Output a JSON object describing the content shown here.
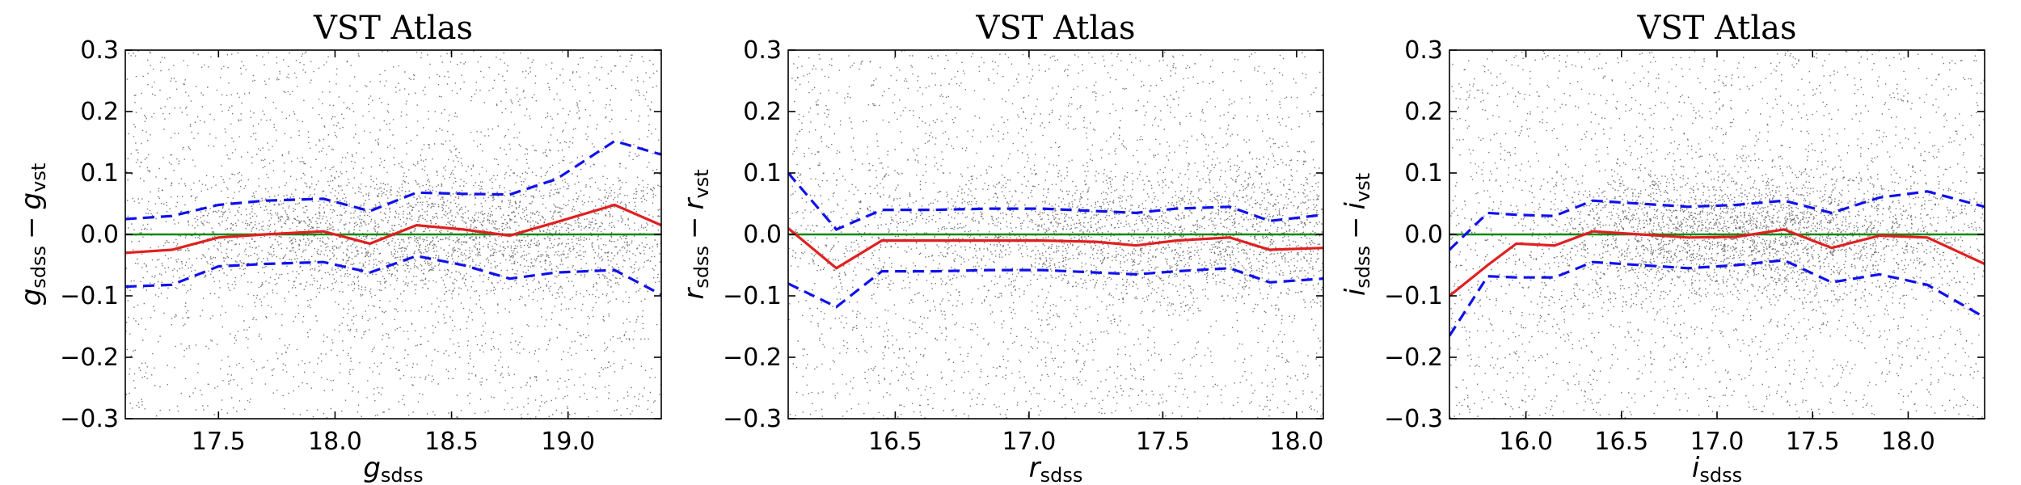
{
  "colors": {
    "zero_line": "#118811",
    "median": "#e02020",
    "spread": "#1010ee",
    "points": "#000000"
  },
  "chart_data": [
    {
      "type": "scatter",
      "title": "VST Atlas",
      "xlabel": {
        "var": "g",
        "sub": "sdss"
      },
      "ylabel": {
        "var1": "g",
        "sub1": "sdss",
        "op": "−",
        "var2": "g",
        "sub2": "vst"
      },
      "xlim": [
        17.1,
        19.4
      ],
      "ylim": [
        -0.3,
        0.3
      ],
      "xticks": [
        17.5,
        18.0,
        18.5,
        19.0
      ],
      "xtick_labels": [
        "17.5",
        "18.0",
        "18.5",
        "19.0"
      ],
      "yticks": [
        -0.3,
        -0.2,
        -0.1,
        0.0,
        0.1,
        0.2,
        0.3
      ],
      "ytick_labels": [
        "−0.3",
        "−0.2",
        "−0.1",
        "0.0",
        "0.1",
        "0.2",
        "0.3"
      ],
      "scatter_center": 18.45,
      "scatter_width": 0.75,
      "scatter_seed": 11,
      "series": [
        {
          "name": "zero",
          "style": "solid",
          "color": "zero_line",
          "x": [
            17.1,
            19.4
          ],
          "y": [
            0,
            0
          ]
        },
        {
          "name": "median",
          "style": "solid",
          "color": "median",
          "x": [
            17.1,
            17.3,
            17.5,
            17.7,
            17.95,
            18.15,
            18.35,
            18.55,
            18.75,
            18.95,
            19.2,
            19.4
          ],
          "y": [
            -0.03,
            -0.025,
            -0.005,
            0.0,
            0.005,
            -0.015,
            0.015,
            0.008,
            -0.002,
            0.02,
            0.048,
            0.015
          ]
        },
        {
          "name": "upper",
          "style": "dashed",
          "color": "spread",
          "x": [
            17.1,
            17.3,
            17.5,
            17.7,
            17.95,
            18.15,
            18.35,
            18.55,
            18.75,
            18.95,
            19.2,
            19.4
          ],
          "y": [
            0.025,
            0.03,
            0.048,
            0.055,
            0.058,
            0.038,
            0.068,
            0.066,
            0.065,
            0.09,
            0.152,
            0.13
          ]
        },
        {
          "name": "lower",
          "style": "dashed",
          "color": "spread",
          "x": [
            17.1,
            17.3,
            17.5,
            17.7,
            17.95,
            18.15,
            18.35,
            18.55,
            18.75,
            18.95,
            19.2,
            19.4
          ],
          "y": [
            -0.085,
            -0.082,
            -0.052,
            -0.048,
            -0.045,
            -0.062,
            -0.035,
            -0.05,
            -0.072,
            -0.062,
            -0.058,
            -0.098
          ]
        }
      ]
    },
    {
      "type": "scatter",
      "title": "VST Atlas",
      "xlabel": {
        "var": "r",
        "sub": "sdss"
      },
      "ylabel": {
        "var1": "r",
        "sub1": "sdss",
        "op": "−",
        "var2": "r",
        "sub2": "vst"
      },
      "xlim": [
        16.1,
        18.1
      ],
      "ylim": [
        -0.3,
        0.3
      ],
      "xticks": [
        16.5,
        17.0,
        17.5,
        18.0
      ],
      "xtick_labels": [
        "16.5",
        "17.0",
        "17.5",
        "18.0"
      ],
      "yticks": [
        -0.3,
        -0.2,
        -0.1,
        0.0,
        0.1,
        0.2,
        0.3
      ],
      "ytick_labels": [
        "−0.3",
        "−0.2",
        "−0.1",
        "0.0",
        "0.1",
        "0.2",
        "0.3"
      ],
      "scatter_center": 17.6,
      "scatter_width": 0.7,
      "scatter_seed": 23,
      "series": [
        {
          "name": "zero",
          "style": "solid",
          "color": "zero_line",
          "x": [
            16.1,
            18.1
          ],
          "y": [
            0,
            0
          ]
        },
        {
          "name": "median",
          "style": "solid",
          "color": "median",
          "x": [
            16.1,
            16.28,
            16.45,
            16.65,
            16.85,
            17.05,
            17.25,
            17.4,
            17.55,
            17.75,
            17.9,
            18.1
          ],
          "y": [
            0.01,
            -0.055,
            -0.01,
            -0.01,
            -0.01,
            -0.01,
            -0.012,
            -0.018,
            -0.01,
            -0.005,
            -0.025,
            -0.022
          ]
        },
        {
          "name": "upper",
          "style": "dashed",
          "color": "spread",
          "x": [
            16.1,
            16.28,
            16.45,
            16.65,
            16.85,
            17.05,
            17.25,
            17.4,
            17.55,
            17.75,
            17.9,
            18.1
          ],
          "y": [
            0.1,
            0.008,
            0.04,
            0.04,
            0.042,
            0.042,
            0.038,
            0.035,
            0.042,
            0.045,
            0.022,
            0.032
          ]
        },
        {
          "name": "lower",
          "style": "dashed",
          "color": "spread",
          "x": [
            16.1,
            16.28,
            16.45,
            16.65,
            16.85,
            17.05,
            17.25,
            17.4,
            17.55,
            17.75,
            17.9,
            18.1
          ],
          "y": [
            -0.08,
            -0.118,
            -0.06,
            -0.06,
            -0.058,
            -0.058,
            -0.062,
            -0.065,
            -0.06,
            -0.055,
            -0.078,
            -0.072
          ]
        }
      ]
    },
    {
      "type": "scatter",
      "title": "VST Atlas",
      "xlabel": {
        "var": "i",
        "sub": "sdss"
      },
      "ylabel": {
        "var1": "i",
        "sub1": "sdss",
        "op": "−",
        "var2": "i",
        "sub2": "vst"
      },
      "xlim": [
        15.6,
        18.4
      ],
      "ylim": [
        -0.3,
        0.3
      ],
      "xticks": [
        16.0,
        16.5,
        17.0,
        17.5,
        18.0
      ],
      "xtick_labels": [
        "16.0",
        "16.5",
        "17.0",
        "17.5",
        "18.0"
      ],
      "yticks": [
        -0.3,
        -0.2,
        -0.1,
        0.0,
        0.1,
        0.2,
        0.3
      ],
      "ytick_labels": [
        "−0.3",
        "−0.2",
        "−0.1",
        "0.0",
        "0.1",
        "0.2",
        "0.3"
      ],
      "scatter_center": 17.15,
      "scatter_width": 0.6,
      "scatter_seed": 37,
      "series": [
        {
          "name": "zero",
          "style": "solid",
          "color": "zero_line",
          "x": [
            15.6,
            18.4
          ],
          "y": [
            0,
            0
          ]
        },
        {
          "name": "median",
          "style": "solid",
          "color": "median",
          "x": [
            15.6,
            15.8,
            15.95,
            16.15,
            16.35,
            16.6,
            16.85,
            17.1,
            17.35,
            17.6,
            17.85,
            18.1,
            18.4
          ],
          "y": [
            -0.1,
            -0.05,
            -0.015,
            -0.018,
            0.005,
            0.0,
            -0.005,
            -0.004,
            0.008,
            -0.022,
            -0.002,
            -0.005,
            -0.048
          ]
        },
        {
          "name": "upper",
          "style": "dashed",
          "color": "spread",
          "x": [
            15.6,
            15.8,
            15.95,
            16.15,
            16.35,
            16.6,
            16.85,
            17.1,
            17.35,
            17.6,
            17.85,
            18.1,
            18.4
          ],
          "y": [
            -0.025,
            0.035,
            0.032,
            0.03,
            0.055,
            0.05,
            0.045,
            0.048,
            0.055,
            0.035,
            0.06,
            0.07,
            0.045
          ]
        },
        {
          "name": "lower",
          "style": "dashed",
          "color": "spread",
          "x": [
            15.6,
            15.8,
            15.95,
            16.15,
            16.35,
            16.6,
            16.85,
            17.1,
            17.35,
            17.6,
            17.85,
            18.1,
            18.4
          ],
          "y": [
            -0.165,
            -0.068,
            -0.07,
            -0.07,
            -0.045,
            -0.05,
            -0.055,
            -0.05,
            -0.042,
            -0.078,
            -0.065,
            -0.082,
            -0.135
          ]
        }
      ]
    }
  ]
}
